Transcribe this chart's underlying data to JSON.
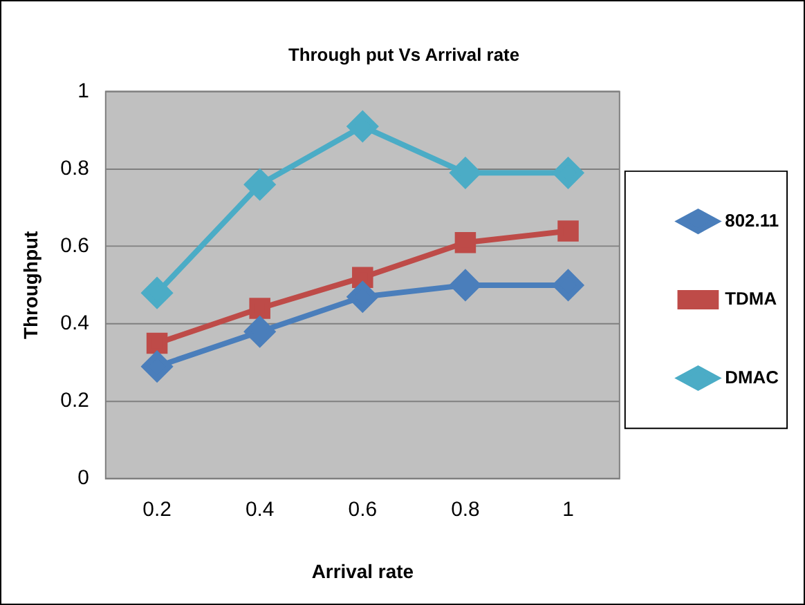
{
  "chart_data": {
    "type": "line",
    "title": "Through put Vs Arrival rate",
    "xlabel": "Arrival rate",
    "ylabel": "Throughput",
    "categories": [
      "0.2",
      "0.4",
      "0.6",
      "0.8",
      "1"
    ],
    "series": [
      {
        "name": "802.11",
        "color": "#4a7ebb",
        "marker": "diamond",
        "values": [
          0.29,
          0.38,
          0.47,
          0.5,
          0.5
        ]
      },
      {
        "name": "TDMA",
        "color": "#be4b48",
        "marker": "square",
        "values": [
          0.35,
          0.44,
          0.52,
          0.61,
          0.64
        ]
      },
      {
        "name": "DMAC",
        "color": "#4bacc6",
        "marker": "diamond",
        "values": [
          0.48,
          0.76,
          0.91,
          0.79,
          0.79
        ]
      }
    ],
    "ylim": [
      0,
      1
    ],
    "yticks": [
      0,
      0.2,
      0.4,
      0.6,
      0.8,
      1
    ],
    "grid": "y",
    "legend": "right"
  }
}
